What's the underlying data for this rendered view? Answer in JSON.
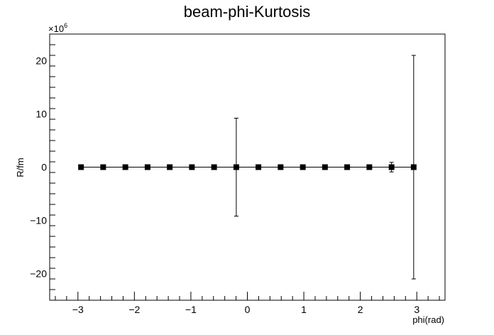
{
  "chart_data": {
    "type": "scatter",
    "title": "beam-phi-Kurtosis",
    "xlabel": "phi(rad)",
    "ylabel": "R/fm",
    "y_multiplier_label": "×10",
    "y_multiplier_exp": "6",
    "xlim": [
      -3.5,
      3.5
    ],
    "ylim": [
      -25,
      25
    ],
    "x_ticks": [
      -3,
      -2,
      -1,
      0,
      1,
      2,
      3
    ],
    "x_tick_labels": [
      "−3",
      "−2",
      "−1",
      "0",
      "1",
      "2",
      "3"
    ],
    "y_ticks": [
      -20,
      -10,
      0,
      10,
      20
    ],
    "y_tick_labels": [
      "−20",
      "−10",
      "0",
      "10",
      "20"
    ],
    "grid": false,
    "legend": "none",
    "marker": "square",
    "marker_color": "#000000",
    "series": [
      {
        "x": [
          -2.945,
          -2.553,
          -2.16,
          -1.767,
          -1.374,
          -0.982,
          -0.589,
          -0.196,
          0.196,
          0.589,
          0.982,
          1.374,
          1.767,
          2.16,
          2.553,
          2.945
        ],
        "y": [
          0,
          0,
          0,
          0,
          0,
          0,
          0,
          0,
          0,
          0,
          0,
          0,
          0,
          0,
          0,
          0
        ],
        "yerr": [
          0.3,
          0,
          0,
          0,
          0,
          0,
          0,
          9.2,
          0,
          0,
          0,
          0,
          0,
          0,
          0.9,
          21
        ]
      }
    ]
  }
}
